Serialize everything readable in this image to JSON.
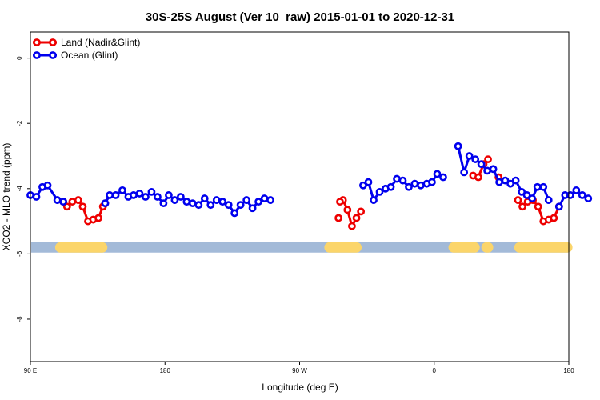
{
  "chart_data": {
    "type": "line",
    "title": "30S-25S August (Ver 10_raw)   2015-01-01 to 2020-12-31",
    "xlabel": "Longitude (deg E)",
    "ylabel": "XCO2 - MLO trend (ppm)",
    "xlim": [
      90,
      450
    ],
    "ylim": [
      -9.3,
      0.8
    ],
    "x_ticks": [
      {
        "value": 90,
        "label": "90 E"
      },
      {
        "value": 180,
        "label": "180"
      },
      {
        "value": 270,
        "label": "90 W"
      },
      {
        "value": 360,
        "label": "0"
      },
      {
        "value": 450,
        "label": "180"
      }
    ],
    "y_ticks": [
      {
        "value": 0,
        "label": "0"
      },
      {
        "value": -2,
        "label": "-2"
      },
      {
        "value": -4,
        "label": "-4"
      },
      {
        "value": -6,
        "label": "-6"
      },
      {
        "value": -8,
        "label": "-8"
      }
    ],
    "legend_position": "top-left",
    "land_ocean_band": {
      "y": -5.8,
      "ocean_color": "#a3bad8",
      "land_color": "#fbd56a",
      "land_ranges": [
        [
          110,
          138
        ],
        [
          290,
          308
        ],
        [
          373,
          387
        ],
        [
          395,
          396
        ],
        [
          417,
          449
        ]
      ]
    },
    "series": [
      {
        "name": "Land (Nadir&Glint)",
        "color": "#ee0000",
        "segments": [
          [
            [
              112,
              -4.4
            ],
            [
              114.5,
              -4.55
            ],
            [
              118,
              -4.4
            ],
            [
              122,
              -4.35
            ],
            [
              125,
              -4.55
            ],
            [
              128.5,
              -5.0
            ],
            [
              132,
              -4.95
            ],
            [
              135.5,
              -4.9
            ],
            [
              138.5,
              -4.55
            ],
            [
              140,
              -4.45
            ]
          ],
          [
            [
              299,
              -4.35
            ],
            [
              302,
              -4.65
            ],
            [
              305,
              -5.15
            ],
            [
              308,
              -4.9
            ],
            [
              311,
              -4.7
            ]
          ],
          [
            [
              386,
              -3.6
            ],
            [
              389.5,
              -3.65
            ],
            [
              393,
              -3.25
            ],
            [
              396,
              -3.1
            ]
          ],
          [
            [
              416,
              -4.35
            ],
            [
              419,
              -4.55
            ],
            [
              422.5,
              -4.4
            ],
            [
              426,
              -4.35
            ],
            [
              429.5,
              -4.55
            ],
            [
              433,
              -5.0
            ],
            [
              436.5,
              -4.95
            ],
            [
              440,
              -4.9
            ],
            [
              443.5,
              -4.55
            ]
          ]
        ],
        "points": [
          [
            296,
            -4.9
          ],
          [
            297,
            -4.4
          ],
          [
            403,
            -3.65
          ]
        ]
      },
      {
        "name": "Ocean (Glint)",
        "color": "#0000ee",
        "segments": [
          [
            [
              90,
              -4.2
            ],
            [
              94,
              -4.25
            ],
            [
              98,
              -3.95
            ],
            [
              101.5,
              -3.9
            ],
            [
              108,
              -4.35
            ],
            [
              112,
              -4.4
            ]
          ],
          [
            [
              140,
              -4.45
            ],
            [
              143,
              -4.2
            ],
            [
              147,
              -4.2
            ],
            [
              151.5,
              -4.05
            ],
            [
              155.5,
              -4.25
            ],
            [
              159,
              -4.2
            ],
            [
              163,
              -4.15
            ],
            [
              167,
              -4.25
            ],
            [
              171,
              -4.1
            ],
            [
              175,
              -4.25
            ],
            [
              179,
              -4.45
            ],
            [
              182.5,
              -4.2
            ],
            [
              186.5,
              -4.35
            ],
            [
              190.5,
              -4.25
            ],
            [
              194.5,
              -4.4
            ],
            [
              198.5,
              -4.45
            ],
            [
              202.5,
              -4.5
            ],
            [
              206.5,
              -4.3
            ],
            [
              210.5,
              -4.5
            ],
            [
              214.5,
              -4.35
            ],
            [
              218.5,
              -4.4
            ],
            [
              222.5,
              -4.5
            ],
            [
              226.5,
              -4.75
            ],
            [
              230.5,
              -4.5
            ],
            [
              234.5,
              -4.35
            ],
            [
              238.5,
              -4.6
            ],
            [
              242.5,
              -4.4
            ],
            [
              246.5,
              -4.3
            ],
            [
              250.5,
              -4.35
            ]
          ],
          [
            [
              312.5,
              -3.9
            ],
            [
              316,
              -3.8
            ],
            [
              319.5,
              -4.35
            ],
            [
              323.5,
              -4.1
            ],
            [
              327.5,
              -4.0
            ],
            [
              331,
              -3.95
            ],
            [
              335,
              -3.7
            ],
            [
              339,
              -3.75
            ],
            [
              343,
              -3.95
            ],
            [
              347,
              -3.85
            ],
            [
              351,
              -3.9
            ],
            [
              355,
              -3.85
            ],
            [
              358.5,
              -3.8
            ],
            [
              362,
              -3.55
            ],
            [
              366,
              -3.65
            ]
          ],
          [
            [
              376,
              -2.7
            ],
            [
              380,
              -3.5
            ],
            [
              383.5,
              -3.0
            ],
            [
              387.5,
              -3.1
            ],
            [
              391.5,
              -3.25
            ],
            [
              395.5,
              -3.45
            ],
            [
              399.5,
              -3.4
            ],
            [
              403.5,
              -3.8
            ],
            [
              407.5,
              -3.75
            ],
            [
              411,
              -3.85
            ],
            [
              414.5,
              -3.75
            ],
            [
              418.5,
              -4.1
            ],
            [
              422,
              -4.2
            ],
            [
              425.5,
              -4.3
            ],
            [
              429,
              -3.95
            ],
            [
              433,
              -3.95
            ],
            [
              436.5,
              -4.35
            ]
          ],
          [
            [
              443.5,
              -4.55
            ],
            [
              447.5,
              -4.2
            ],
            [
              451,
              -4.2
            ],
            [
              455,
              -4.05
            ],
            [
              459,
              -4.2
            ],
            [
              463,
              -4.3
            ]
          ]
        ],
        "points": []
      }
    ]
  }
}
